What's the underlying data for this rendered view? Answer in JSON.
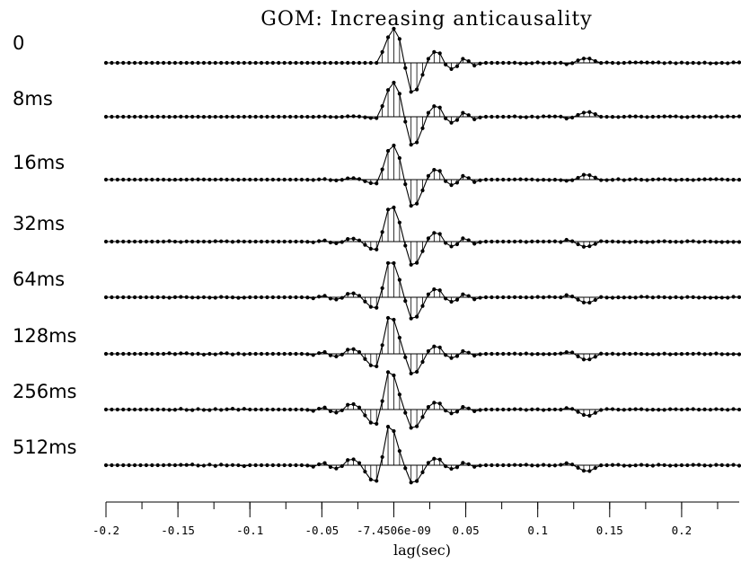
{
  "chart_data": {
    "type": "line",
    "title": "GOM: Increasing anticausality",
    "xlabel": "lag(sec)",
    "ylabel": "",
    "xlim": [
      -0.2,
      0.24
    ],
    "x_ticks": [
      -0.2,
      -0.15,
      -0.1,
      -0.05,
      0,
      0.05,
      0.1,
      0.15,
      0.2
    ],
    "x_tick_labels": [
      "-0.2",
      "-0.15",
      "-0.1",
      "-0.05",
      "-7.4506e-09",
      "0.05",
      "0.1",
      "0.15",
      "0.2"
    ],
    "grid": false,
    "legend": "none",
    "colors": {
      "trace": "#000000",
      "background": "#ffffff"
    },
    "series": [
      {
        "name": "0",
        "shift": 0.0,
        "pre_weight": 0.0
      },
      {
        "name": "8ms",
        "shift": 0.0,
        "pre_weight": 0.08
      },
      {
        "name": "16ms",
        "shift": 0.0,
        "pre_weight": 0.22
      },
      {
        "name": "32ms",
        "shift": 0.0,
        "pre_weight": 0.45
      },
      {
        "name": "64ms",
        "shift": 0.0,
        "pre_weight": 0.6
      },
      {
        "name": "128ms",
        "shift": 0.0,
        "pre_weight": 0.72
      },
      {
        "name": "256ms",
        "shift": 0.0,
        "pre_weight": 0.82
      },
      {
        "name": "512ms",
        "shift": 0.0,
        "pre_weight": 0.9
      }
    ],
    "wavelet": {
      "dt": 0.004,
      "main": [
        {
          "lag": -0.008,
          "value": 0.32
        },
        {
          "lag": -0.004,
          "value": 0.75
        },
        {
          "lag": 0.0,
          "value": 1.0
        },
        {
          "lag": 0.004,
          "value": 0.7
        },
        {
          "lag": 0.008,
          "value": -0.15
        },
        {
          "lag": 0.012,
          "value": -0.85
        },
        {
          "lag": 0.016,
          "value": -0.78
        },
        {
          "lag": 0.02,
          "value": -0.35
        },
        {
          "lag": 0.024,
          "value": 0.12
        },
        {
          "lag": 0.028,
          "value": 0.32
        },
        {
          "lag": 0.032,
          "value": 0.28
        },
        {
          "lag": 0.036,
          "value": -0.05
        },
        {
          "lag": 0.04,
          "value": -0.18
        },
        {
          "lag": 0.044,
          "value": -0.1
        },
        {
          "lag": 0.048,
          "value": 0.12
        },
        {
          "lag": 0.052,
          "value": 0.05
        },
        {
          "lag": 0.056,
          "value": -0.08
        },
        {
          "lag": 0.06,
          "value": -0.02
        }
      ],
      "late_event": [
        {
          "lag": 0.12,
          "value": 0.04
        },
        {
          "lag": 0.124,
          "value": 0.02
        },
        {
          "lag": 0.128,
          "value": -0.06
        },
        {
          "lag": 0.132,
          "value": -0.12
        },
        {
          "lag": 0.136,
          "value": -0.12
        },
        {
          "lag": 0.14,
          "value": -0.06
        }
      ]
    }
  }
}
